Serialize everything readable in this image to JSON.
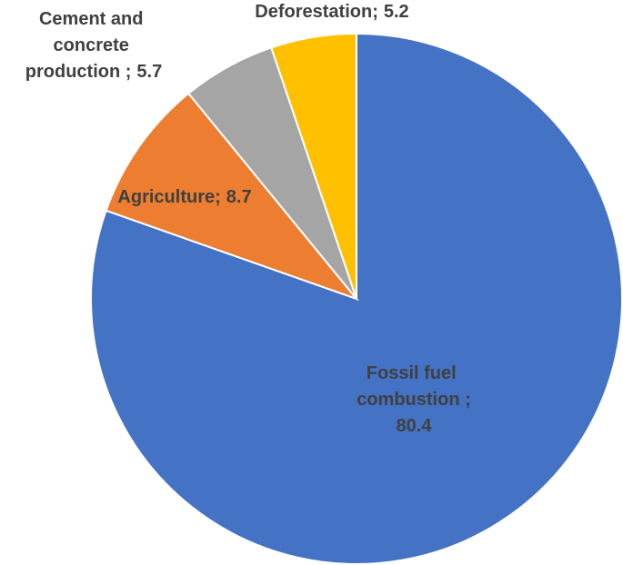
{
  "chart_data": {
    "type": "pie",
    "categories": [
      "Fossil fuel combustion ;",
      "Agriculture;",
      "Cement and concrete production ;",
      "Deforestation;"
    ],
    "values": [
      80.4,
      8.7,
      5.7,
      5.2
    ],
    "colors": [
      "#4472c4",
      "#ed7d31",
      "#a5a5a5",
      "#ffc000"
    ],
    "start_angle": 0,
    "direction": "clockwise"
  }
}
